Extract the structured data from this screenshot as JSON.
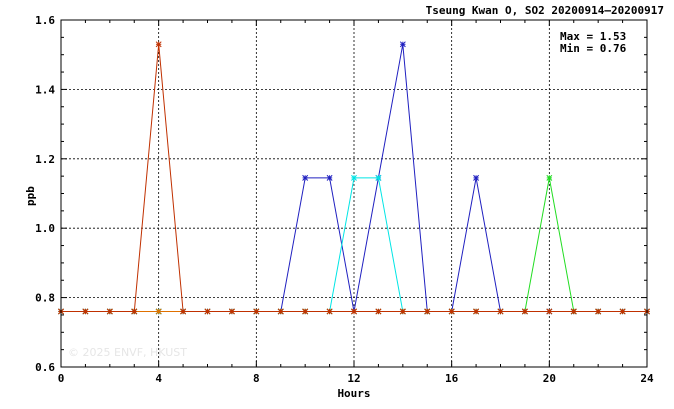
{
  "chart_data": {
    "type": "line",
    "title": "Tseung Kwan O, SO2 20200914–20200917",
    "xlabel": "Hours",
    "ylabel": "ppb",
    "xlim": [
      0,
      24
    ],
    "ylim": [
      0.6,
      1.6
    ],
    "xticks": [
      0,
      4,
      8,
      12,
      16,
      20,
      24
    ],
    "yticks": [
      0.6,
      0.8,
      1.0,
      1.2,
      1.4,
      1.6
    ],
    "ytick_labels": [
      "0.6",
      "0.8",
      "1.0",
      "1.2",
      "1.4",
      "1.6"
    ],
    "grid": true,
    "stats": {
      "max_text": "Max = 1.53",
      "min_text": "Min = 0.76"
    },
    "watermark": "© 2025  ENVF, HKUST",
    "series": [
      {
        "color": "#0000ff",
        "x": [
          0,
          1,
          2,
          3,
          4,
          5,
          6,
          7,
          8,
          9,
          10,
          11,
          12,
          13,
          14,
          15,
          16,
          17,
          18,
          19,
          20,
          21,
          22,
          23,
          24
        ],
        "y": [
          0.76,
          0.76,
          0.76,
          0.76,
          0.76,
          0.76,
          0.76,
          0.76,
          0.76,
          0.76,
          0.76,
          0.76,
          0.76,
          0.76,
          0.76,
          0.76,
          0.76,
          0.76,
          0.76,
          0.76,
          0.76,
          0.76,
          0.76,
          0.76,
          0.76
        ]
      },
      {
        "color": "#2020c0",
        "x": [
          0,
          1,
          2,
          3,
          4,
          5,
          6,
          7,
          8,
          9,
          10,
          11,
          12,
          13,
          14,
          15,
          16,
          17,
          18,
          19,
          20,
          21,
          22,
          23,
          24
        ],
        "y": [
          0.76,
          0.76,
          0.76,
          0.76,
          0.76,
          0.76,
          0.76,
          0.76,
          0.76,
          0.76,
          1.145,
          1.145,
          0.76,
          1.145,
          1.53,
          0.76,
          0.76,
          1.145,
          0.76,
          0.76,
          0.76,
          0.76,
          0.76,
          0.76,
          0.76
        ]
      },
      {
        "color": "#00e5e5",
        "x": [
          0,
          1,
          2,
          3,
          4,
          5,
          6,
          7,
          8,
          9,
          10,
          11,
          12,
          13,
          14,
          15,
          16,
          17,
          18,
          19,
          20,
          21,
          22,
          23,
          24
        ],
        "y": [
          0.76,
          0.76,
          0.76,
          0.76,
          0.76,
          0.76,
          0.76,
          0.76,
          0.76,
          0.76,
          0.76,
          0.76,
          1.145,
          1.145,
          0.76,
          0.76,
          0.76,
          0.76,
          0.76,
          0.76,
          0.76,
          0.76,
          0.76,
          0.76,
          0.76
        ]
      },
      {
        "color": "#22dd22",
        "x": [
          0,
          1,
          2,
          3,
          4,
          5,
          6,
          7,
          8,
          9,
          10,
          11,
          12,
          13,
          14,
          15,
          16,
          17,
          18,
          19,
          20,
          21,
          22,
          23,
          24
        ],
        "y": [
          0.76,
          0.76,
          0.76,
          0.76,
          0.76,
          0.76,
          0.76,
          0.76,
          0.76,
          0.76,
          0.76,
          0.76,
          0.76,
          0.76,
          0.76,
          0.76,
          0.76,
          0.76,
          0.76,
          0.76,
          1.145,
          0.76,
          0.76,
          0.76,
          0.76
        ]
      },
      {
        "color": "#e07000",
        "x": [
          0,
          1,
          2,
          3,
          4,
          5,
          6,
          7,
          8,
          9,
          10,
          11,
          12,
          13,
          14,
          15,
          16,
          17,
          18,
          19,
          20,
          21,
          22,
          23,
          24
        ],
        "y": [
          0.76,
          0.76,
          0.76,
          0.76,
          0.76,
          0.76,
          0.76,
          0.76,
          0.76,
          0.76,
          0.76,
          0.76,
          0.76,
          0.76,
          0.76,
          0.76,
          0.76,
          0.76,
          0.76,
          0.76,
          0.76,
          0.76,
          0.76,
          0.76,
          0.76
        ]
      },
      {
        "color": "#c03000",
        "x": [
          0,
          1,
          2,
          3,
          4,
          5,
          6,
          7,
          8,
          9,
          10,
          11,
          12,
          13,
          14,
          15,
          16,
          17,
          18,
          19,
          20,
          21,
          22,
          23,
          24
        ],
        "y": [
          0.76,
          0.76,
          0.76,
          0.76,
          1.53,
          0.76,
          0.76,
          0.76,
          0.76,
          0.76,
          0.76,
          0.76,
          0.76,
          0.76,
          0.76,
          0.76,
          0.76,
          0.76,
          0.76,
          0.76,
          0.76,
          0.76,
          0.76,
          0.76,
          0.76
        ]
      }
    ]
  }
}
